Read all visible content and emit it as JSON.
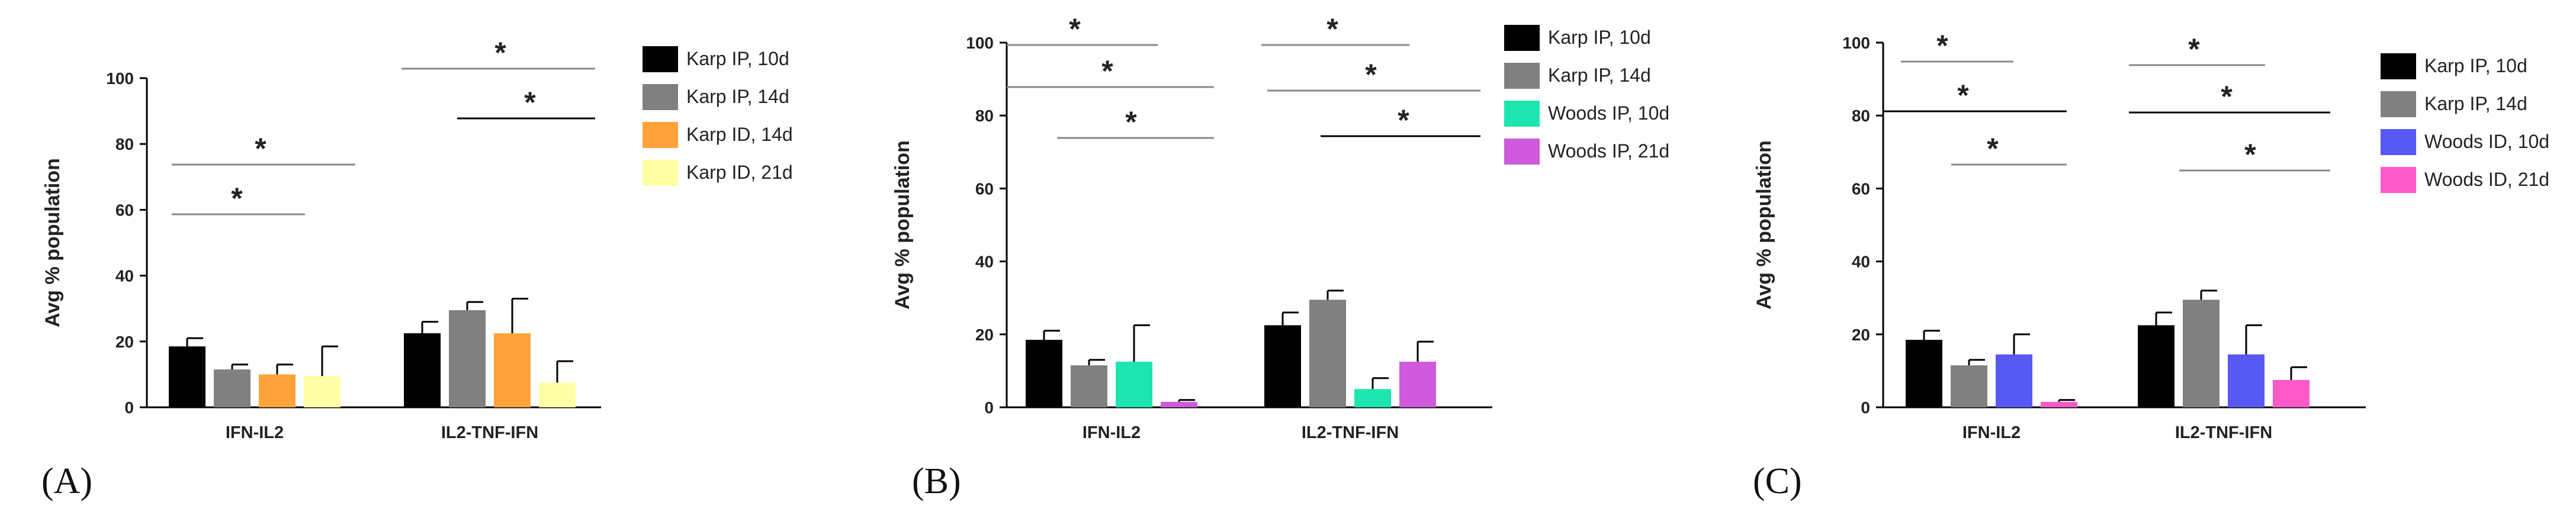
{
  "chart_data": [
    {
      "type": "bar",
      "panel_label": "(A)",
      "ylabel": "Avg % population",
      "ylim": [
        0,
        100
      ],
      "yticks": [
        0,
        20,
        40,
        60,
        80,
        100
      ],
      "categories": [
        "IFN-IL2",
        "IL2-TNF-IFN"
      ],
      "series": [
        {
          "name": "Karp IP, 10d",
          "color": "#000000",
          "values": [
            18.5,
            22.5
          ],
          "errors": [
            2.5,
            3.5
          ]
        },
        {
          "name": "Karp IP, 14d",
          "color": "#808080",
          "values": [
            11.5,
            29.5
          ],
          "errors": [
            1.5,
            2.5
          ]
        },
        {
          "name": "Karp ID, 14d",
          "color": "#FFA33A",
          "values": [
            10,
            22.5
          ],
          "errors": [
            3,
            10.5
          ]
        },
        {
          "name": "Karp ID, 21d",
          "color": "#FFFFA6",
          "values": [
            9.5,
            7.5
          ],
          "errors": [
            9,
            6.5
          ]
        }
      ],
      "significance": [
        "*",
        "*",
        "*",
        "*"
      ]
    },
    {
      "type": "bar",
      "panel_label": "(B)",
      "ylabel": "Avg % population",
      "ylim": [
        0,
        100
      ],
      "yticks": [
        0,
        20,
        40,
        60,
        80,
        100
      ],
      "categories": [
        "IFN-IL2",
        "IL2-TNF-IFN"
      ],
      "series": [
        {
          "name": "Karp IP, 10d",
          "color": "#000000",
          "values": [
            18.5,
            22.5
          ],
          "errors": [
            2.5,
            3.5
          ]
        },
        {
          "name": "Karp IP, 14d",
          "color": "#808080",
          "values": [
            11.5,
            29.5
          ],
          "errors": [
            1.5,
            2.5
          ]
        },
        {
          "name": "Woods IP, 10d",
          "color": "#1DE5B0",
          "values": [
            12.5,
            5
          ],
          "errors": [
            10,
            3
          ]
        },
        {
          "name": "Woods IP, 21d",
          "color": "#CE5BDB",
          "values": [
            1.5,
            12.5
          ],
          "errors": [
            0.5,
            5.5
          ]
        }
      ],
      "significance": [
        "*",
        "*",
        "*",
        "*",
        "*",
        "*"
      ]
    },
    {
      "type": "bar",
      "panel_label": "(C)",
      "ylabel": "Avg % population",
      "ylim": [
        0,
        100
      ],
      "yticks": [
        0,
        20,
        40,
        60,
        80,
        100
      ],
      "categories": [
        "IFN-IL2",
        "IL2-TNF-IFN"
      ],
      "series": [
        {
          "name": "Karp IP, 10d",
          "color": "#000000",
          "values": [
            18.5,
            22.5
          ],
          "errors": [
            2.5,
            3.5
          ]
        },
        {
          "name": "Karp IP, 14d",
          "color": "#808080",
          "values": [
            11.5,
            29.5
          ],
          "errors": [
            1.5,
            2.5
          ]
        },
        {
          "name": "Woods ID, 10d",
          "color": "#5858F4",
          "values": [
            14.5,
            14.5
          ],
          "errors": [
            5.5,
            8
          ]
        },
        {
          "name": "Woods ID, 21d",
          "color": "#FF5AC8",
          "values": [
            1.5,
            7.5
          ],
          "errors": [
            0.5,
            3.5
          ]
        }
      ],
      "significance": [
        "*",
        "*",
        "*",
        "*",
        "*",
        "*"
      ]
    }
  ]
}
